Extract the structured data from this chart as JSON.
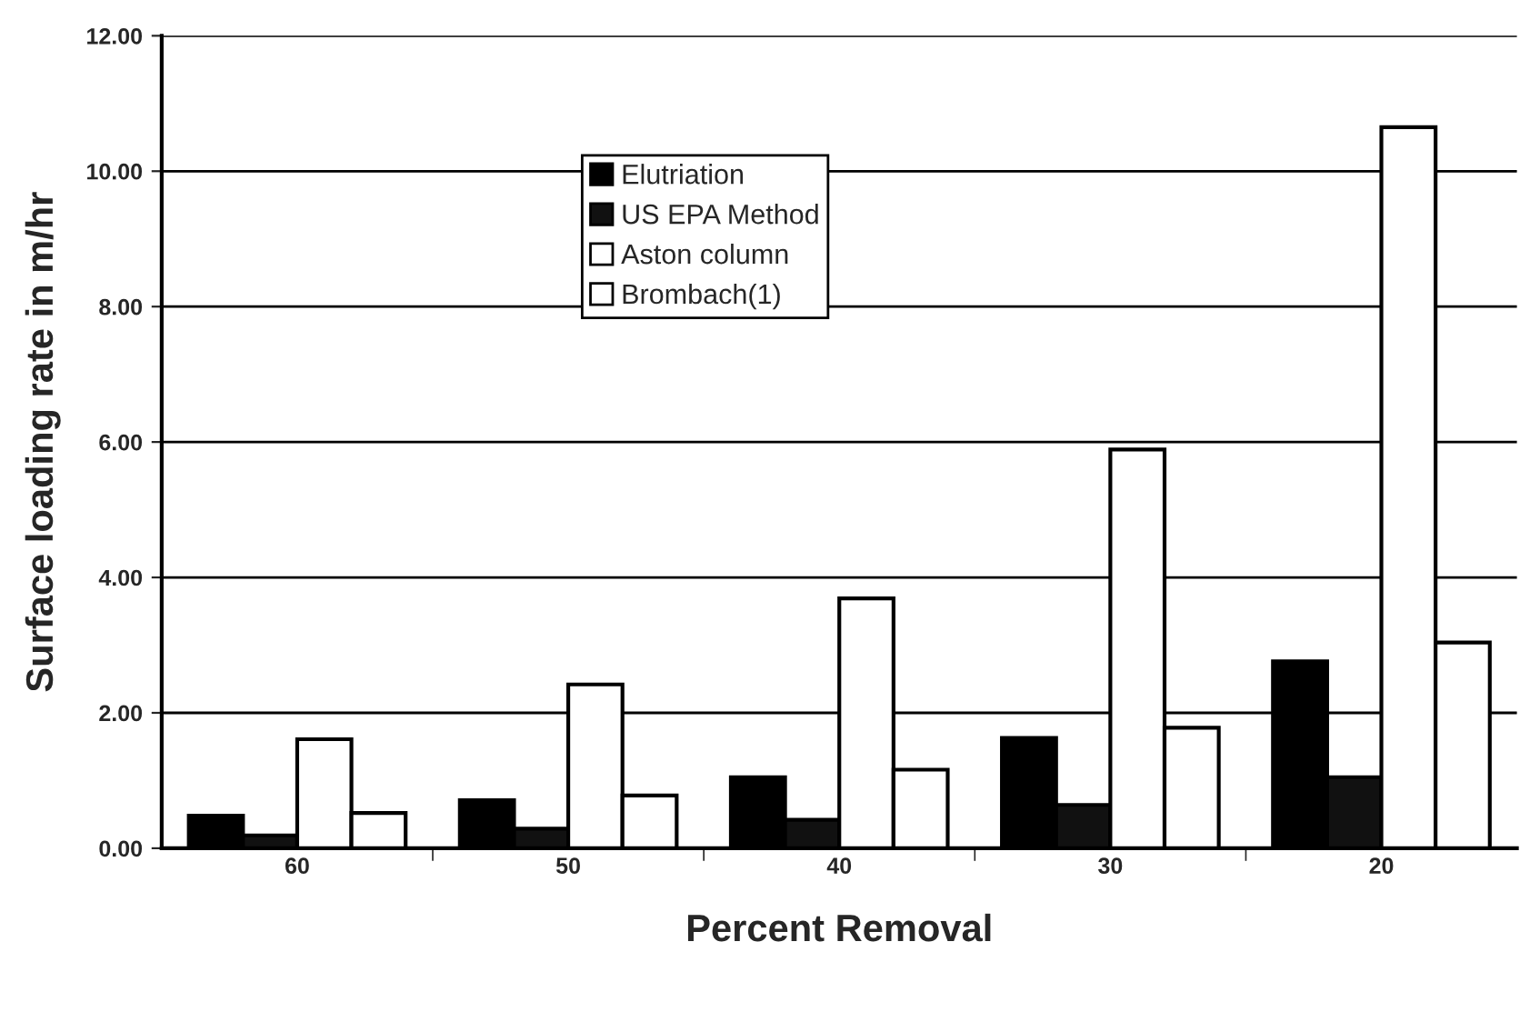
{
  "chart_data": {
    "type": "bar",
    "xlabel": "Percent Removal",
    "ylabel": "Surface loading rate in m/hr",
    "categories": [
      "60",
      "50",
      "40",
      "30",
      "20"
    ],
    "series": [
      {
        "name": "Elutriation",
        "color": "#000000",
        "values": [
          0.48,
          0.71,
          1.05,
          1.63,
          2.76
        ]
      },
      {
        "name": "US EPA Method",
        "color": "#111111",
        "values": [
          0.19,
          0.29,
          0.42,
          0.64,
          1.05
        ]
      },
      {
        "name": "Aston column",
        "color": "#ffffff",
        "values": [
          1.61,
          2.42,
          3.69,
          5.89,
          10.65
        ]
      },
      {
        "name": "Brombach(1)",
        "color": "#ffffff",
        "values": [
          0.52,
          0.78,
          1.16,
          1.78,
          3.04
        ]
      }
    ],
    "ylim": [
      0,
      12
    ],
    "yticks": [
      {
        "value": 0,
        "label": "0.00"
      },
      {
        "value": 2,
        "label": "2.00"
      },
      {
        "value": 4,
        "label": "4.00"
      },
      {
        "value": 6,
        "label": "6.00"
      },
      {
        "value": 8,
        "label": "8.00"
      },
      {
        "value": 10,
        "label": "10.00"
      },
      {
        "value": 12,
        "label": "12.00"
      }
    ],
    "grid": "y",
    "legend": "top"
  }
}
